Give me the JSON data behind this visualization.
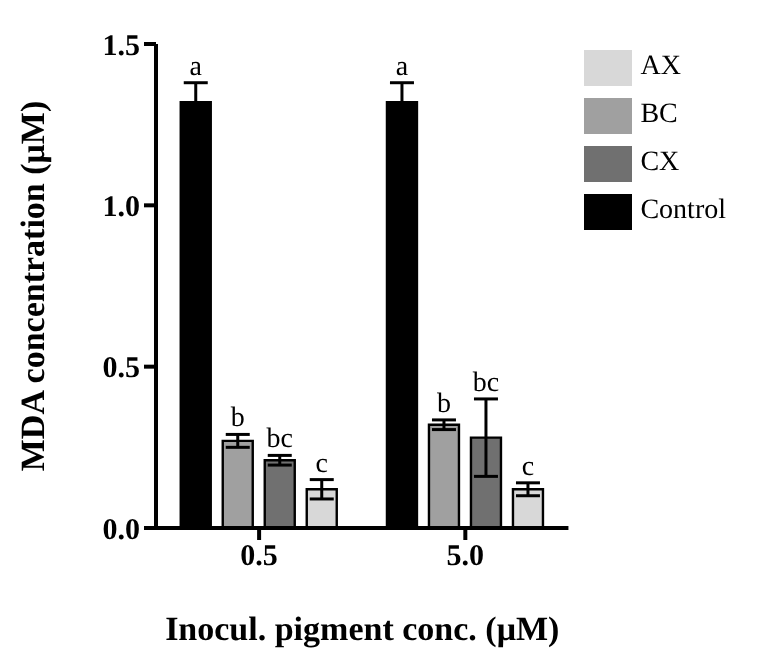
{
  "chart_data": {
    "type": "bar",
    "xlabel": "Inocul. pigment conc. (μM)",
    "ylabel": "MDA concentration (μM)",
    "categories": [
      "0.5",
      "5.0"
    ],
    "ylim": [
      0,
      1.5
    ],
    "yticks": [
      {
        "value": 0,
        "label": "0.0"
      },
      0.5,
      {
        "value": 1,
        "label": "1.0"
      },
      1.5
    ],
    "legend": "top right",
    "grid": false,
    "series": [
      {
        "name": "Control",
        "color": "#000000",
        "values": [
          1.32,
          1.32
        ],
        "errors": [
          0.06,
          0.06
        ],
        "value_labels": [
          "a",
          "a"
        ]
      },
      {
        "name": "BC",
        "color": "#a0a0a0",
        "values": [
          0.27,
          0.32
        ],
        "errors": [
          0.02,
          0.015
        ],
        "value_labels": [
          "b",
          "b"
        ]
      },
      {
        "name": "CX",
        "color": "#707070",
        "values": [
          0.21,
          0.28
        ],
        "errors": [
          0.015,
          0.12
        ],
        "value_labels": [
          "bc",
          "bc"
        ]
      },
      {
        "name": "AX",
        "color": "#d8d8d8",
        "values": [
          0.12,
          0.12
        ],
        "errors": [
          0.03,
          0.02
        ],
        "value_labels": [
          "c",
          "c"
        ]
      }
    ]
  }
}
